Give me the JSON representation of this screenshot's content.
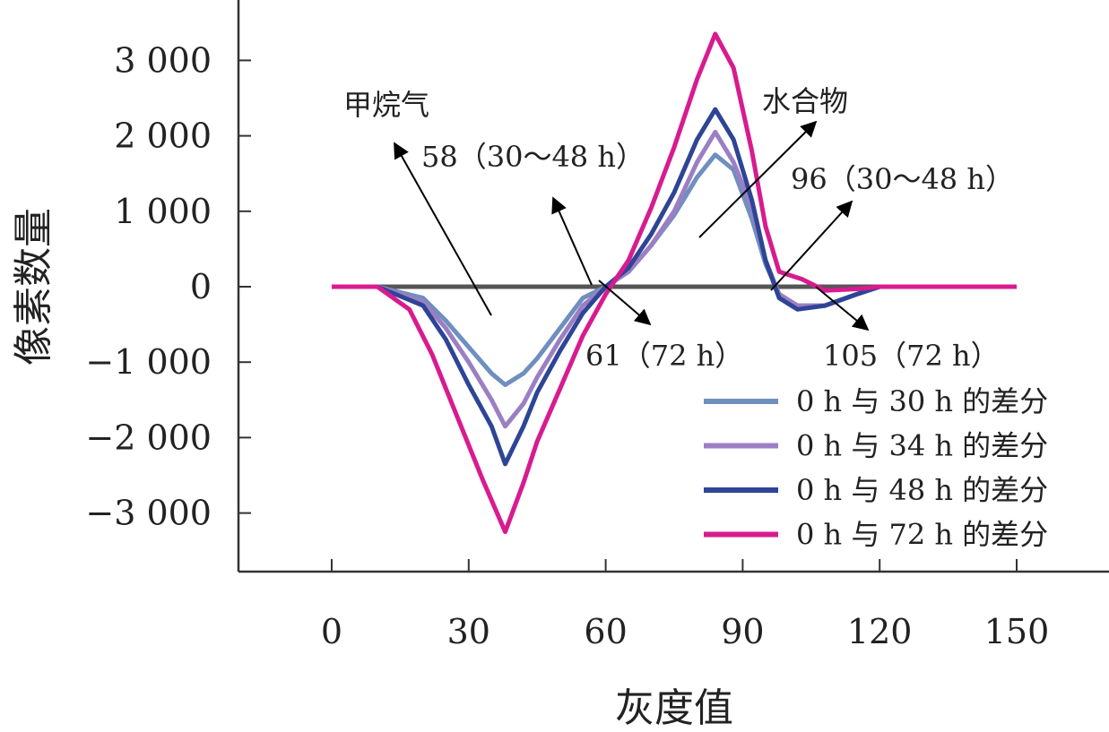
{
  "chart_data": {
    "type": "line",
    "xlabel": "灰度值",
    "ylabel": "像素数量",
    "xlim": [
      -20,
      165
    ],
    "ylim": [
      -3800,
      3900
    ],
    "x_ticks": [
      0,
      30,
      60,
      90,
      120,
      150
    ],
    "x_tick_labels": [
      "0",
      "30",
      "60",
      "90",
      "120",
      "150"
    ],
    "y_ticks": [
      3000,
      2000,
      1000,
      0,
      -1000,
      -2000,
      -3000
    ],
    "y_tick_labels": [
      "3 000",
      "2 000",
      "1 000",
      "0",
      "−1 000",
      "−2 000",
      "−3 000"
    ],
    "zero_line": true,
    "legend_position": "bottom-right",
    "series": [
      {
        "name": "0 h 与 30 h 的差分",
        "color": "#6f8fbf",
        "points": [
          [
            0,
            0
          ],
          [
            10,
            0
          ],
          [
            20,
            -150
          ],
          [
            25,
            -450
          ],
          [
            30,
            -800
          ],
          [
            35,
            -1150
          ],
          [
            38,
            -1300
          ],
          [
            42,
            -1150
          ],
          [
            45,
            -950
          ],
          [
            50,
            -550
          ],
          [
            55,
            -150
          ],
          [
            60,
            0
          ],
          [
            65,
            200
          ],
          [
            70,
            550
          ],
          [
            75,
            950
          ],
          [
            80,
            1450
          ],
          [
            84,
            1750
          ],
          [
            88,
            1550
          ],
          [
            92,
            900
          ],
          [
            95,
            300
          ],
          [
            98,
            -100
          ],
          [
            102,
            -250
          ],
          [
            108,
            -250
          ],
          [
            115,
            -100
          ],
          [
            120,
            0
          ],
          [
            130,
            0
          ],
          [
            140,
            0
          ],
          [
            150,
            0
          ]
        ]
      },
      {
        "name": "0 h 与 34 h 的差分",
        "color": "#9b7fc4",
        "points": [
          [
            0,
            0
          ],
          [
            10,
            0
          ],
          [
            20,
            -200
          ],
          [
            25,
            -550
          ],
          [
            30,
            -1000
          ],
          [
            35,
            -1500
          ],
          [
            38,
            -1850
          ],
          [
            42,
            -1550
          ],
          [
            45,
            -1200
          ],
          [
            50,
            -700
          ],
          [
            55,
            -250
          ],
          [
            60,
            0
          ],
          [
            65,
            200
          ],
          [
            70,
            550
          ],
          [
            75,
            1000
          ],
          [
            80,
            1650
          ],
          [
            84,
            2050
          ],
          [
            88,
            1650
          ],
          [
            92,
            1050
          ],
          [
            95,
            350
          ],
          [
            98,
            -100
          ],
          [
            102,
            -250
          ],
          [
            108,
            -250
          ],
          [
            115,
            -100
          ],
          [
            120,
            0
          ],
          [
            130,
            0
          ],
          [
            140,
            0
          ],
          [
            150,
            0
          ]
        ]
      },
      {
        "name": "0 h 与 48 h 的差分",
        "color": "#2e4596",
        "points": [
          [
            0,
            0
          ],
          [
            10,
            0
          ],
          [
            20,
            -250
          ],
          [
            25,
            -700
          ],
          [
            30,
            -1300
          ],
          [
            35,
            -1850
          ],
          [
            38,
            -2350
          ],
          [
            42,
            -1850
          ],
          [
            45,
            -1400
          ],
          [
            50,
            -850
          ],
          [
            55,
            -350
          ],
          [
            60,
            0
          ],
          [
            65,
            250
          ],
          [
            70,
            700
          ],
          [
            75,
            1250
          ],
          [
            80,
            1950
          ],
          [
            84,
            2350
          ],
          [
            88,
            1950
          ],
          [
            92,
            1150
          ],
          [
            95,
            350
          ],
          [
            98,
            -150
          ],
          [
            102,
            -300
          ],
          [
            108,
            -250
          ],
          [
            115,
            -100
          ],
          [
            120,
            0
          ],
          [
            130,
            0
          ],
          [
            140,
            0
          ],
          [
            150,
            0
          ]
        ]
      },
      {
        "name": "0 h 与 72 h 的差分",
        "color": "#d81b8f",
        "points": [
          [
            0,
            0
          ],
          [
            10,
            0
          ],
          [
            17,
            -300
          ],
          [
            22,
            -900
          ],
          [
            28,
            -1800
          ],
          [
            33,
            -2550
          ],
          [
            38,
            -3250
          ],
          [
            42,
            -2600
          ],
          [
            45,
            -2050
          ],
          [
            50,
            -1350
          ],
          [
            55,
            -650
          ],
          [
            60,
            -100
          ],
          [
            65,
            350
          ],
          [
            70,
            1050
          ],
          [
            75,
            1850
          ],
          [
            80,
            2750
          ],
          [
            84,
            3350
          ],
          [
            88,
            2900
          ],
          [
            92,
            1800
          ],
          [
            95,
            800
          ],
          [
            98,
            200
          ],
          [
            103,
            100
          ],
          [
            108,
            -50
          ],
          [
            115,
            -30
          ],
          [
            120,
            0
          ],
          [
            130,
            0
          ],
          [
            140,
            0
          ],
          [
            150,
            0
          ]
        ]
      }
    ],
    "annotations": {
      "methane": "甲烷气",
      "hydrate": "水合物",
      "a58": "58（30～48 h）",
      "a61": "61（72 h）",
      "a96": "96（30～48 h）",
      "a105": "105（72 h）"
    }
  }
}
